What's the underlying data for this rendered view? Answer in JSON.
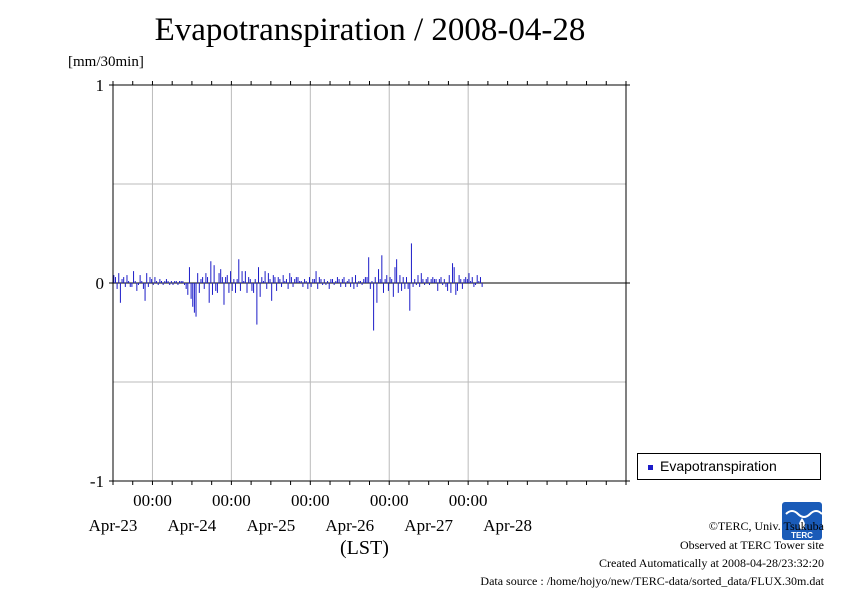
{
  "chart_data": {
    "type": "bar",
    "title": "Evapotranspiration / 2008-04-28",
    "ylabel": "[mm/30min]",
    "xlabel": "(LST)",
    "ylim": [
      -1,
      1
    ],
    "yticks": [
      "1",
      "0",
      "-1"
    ],
    "x_start": "2008-04-22 12:00",
    "x_end": "2008-04-28 24:00",
    "interval": "30min",
    "xticks": [
      {
        "time": "2008-04-23 00:00",
        "label": "00:00",
        "date": "Apr-23"
      },
      {
        "time": "2008-04-24 00:00",
        "label": "00:00",
        "date": "Apr-24"
      },
      {
        "time": "2008-04-25 00:00",
        "label": "00:00",
        "date": "Apr-25"
      },
      {
        "time": "2008-04-26 00:00",
        "label": "00:00",
        "date": "Apr-26"
      },
      {
        "time": "2008-04-27 00:00",
        "label": "00:00",
        "date": "Apr-27"
      }
    ],
    "extra_date_labels": [
      {
        "time": "2008-04-28 00:00",
        "date": "Apr-28"
      }
    ],
    "grid": true,
    "legend_position": "bottom-right outside",
    "series": [
      {
        "name": "Evapotranspiration",
        "color": "#1c1cc8",
        "values": [
          0.04,
          0.03,
          -0.03,
          0.05,
          -0.1,
          0.02,
          0.03,
          -0.02,
          0.04,
          0.01,
          -0.02,
          -0.02,
          0.06,
          0.01,
          -0.04,
          -0.01,
          0.04,
          0.01,
          -0.03,
          -0.09,
          0.05,
          -0.02,
          0.03,
          0.02,
          -0.01,
          0.03,
          0.01,
          -0.01,
          0.02,
          0.01,
          -0.01,
          0.01,
          0.02,
          0.01,
          -0.01,
          0.01,
          -0.01,
          0.01,
          0.01,
          -0.01,
          0.01,
          0.01,
          0.01,
          -0.01,
          -0.03,
          -0.06,
          0.08,
          -0.08,
          -0.12,
          -0.15,
          -0.17,
          0.05,
          -0.05,
          0.02,
          0.03,
          -0.03,
          0.05,
          0.03,
          -0.1,
          0.11,
          -0.06,
          0.09,
          -0.04,
          -0.05,
          0.05,
          0.07,
          0.03,
          -0.11,
          0.03,
          0.04,
          -0.05,
          0.06,
          -0.04,
          0.02,
          -0.05,
          0.02,
          0.12,
          -0.04,
          0.06,
          0.01,
          0.06,
          -0.05,
          0.03,
          0.02,
          -0.04,
          -0.05,
          0.02,
          -0.21,
          0.08,
          -0.07,
          0.03,
          0.01,
          0.06,
          -0.03,
          0.05,
          0.02,
          -0.09,
          0.04,
          0.03,
          -0.04,
          0.03,
          0.02,
          -0.02,
          0.04,
          0.01,
          0.02,
          -0.03,
          0.05,
          0.03,
          -0.02,
          0.02,
          0.03,
          0.03,
          0.01,
          0.01,
          -0.02,
          0.02,
          0.01,
          -0.03,
          0.03,
          -0.02,
          0.02,
          0.02,
          0.06,
          -0.03,
          0.03,
          0.02,
          -0.01,
          0.02,
          -0.01,
          0.01,
          -0.03,
          0.02,
          0.02,
          -0.01,
          0.01,
          0.03,
          0.02,
          -0.02,
          0.02,
          0.03,
          -0.02,
          0.01,
          0.02,
          -0.02,
          0.03,
          -0.03,
          0.04,
          -0.02,
          0.01,
          0.01,
          -0.01,
          0.02,
          0.03,
          0.03,
          0.13,
          -0.03,
          0.01,
          -0.24,
          0.03,
          -0.1,
          0.07,
          0.02,
          0.14,
          -0.05,
          0.02,
          0.04,
          -0.04,
          0.03,
          0.02,
          -0.07,
          0.08,
          0.12,
          -0.05,
          0.04,
          -0.04,
          0.03,
          -0.03,
          0.03,
          -0.03,
          -0.14,
          0.2,
          -0.02,
          0.02,
          -0.01,
          0.04,
          -0.02,
          0.05,
          0.02,
          -0.01,
          0.02,
          0.03,
          -0.01,
          0.02,
          0.03,
          0.02,
          0.02,
          -0.04,
          0.02,
          0.03,
          -0.01,
          0.02,
          -0.02,
          -0.04,
          0.04,
          -0.05,
          0.1,
          0.08,
          -0.06,
          -0.04,
          0.04,
          0.02,
          -0.03,
          0.02,
          0.03,
          0.02,
          0.05,
          0.01,
          0.03,
          -0.02,
          -0.01,
          0.04,
          0.01,
          0.03,
          -0.02
        ]
      }
    ]
  },
  "footer": {
    "copyright": "©TERC, Univ. Tsukuba",
    "site": "Observed at TERC Tower site",
    "created": "Created Automatically at 2008-04-28/23:32:20",
    "source": "Data source : /home/hojyo/new/TERC-data/sorted_data/FLUX.30m.dat"
  },
  "logo_text": "TERC",
  "colors": {
    "axis": "#000000",
    "grid": "#bbbbbb",
    "bar": "#1c1cc8",
    "logo": "#1a5bb8"
  }
}
